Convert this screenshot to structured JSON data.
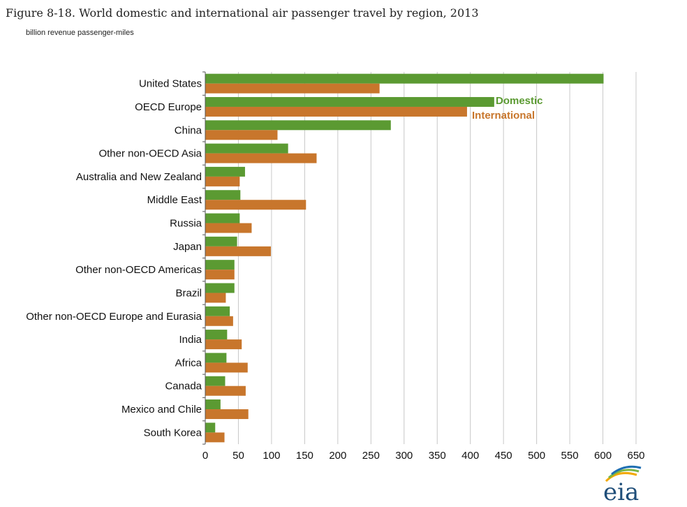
{
  "title": "Figure 8-18. World domestic and international air passenger travel by region, 2013",
  "subtitle": "billion revenue passenger-miles",
  "logo": {
    "text": "eia",
    "colors": [
      "#f2a900",
      "#7ab648",
      "#1f6fb2"
    ]
  },
  "chart_data": {
    "type": "bar",
    "orientation": "horizontal",
    "categories": [
      "United States",
      "OECD Europe",
      "China",
      "Other non-OECD Asia",
      "Australia and New Zealand",
      "Middle East",
      "Russia",
      "Japan",
      "Other non-OECD Americas",
      "Brazil",
      "Other non-OECD Europe and Eurasia",
      "India",
      "Africa",
      "Canada",
      "Mexico and Chile",
      "South Korea"
    ],
    "series": [
      {
        "name": "Domestic",
        "color": "#5b9a32",
        "values": [
          601,
          436,
          280,
          125,
          60,
          53,
          52,
          48,
          44,
          44,
          37,
          33,
          32,
          30,
          23,
          15
        ]
      },
      {
        "name": "International",
        "color": "#c8762c",
        "values": [
          263,
          395,
          109,
          168,
          52,
          152,
          70,
          99,
          44,
          31,
          42,
          55,
          64,
          61,
          65,
          29
        ]
      }
    ],
    "xlim": [
      0,
      650
    ],
    "xticks": [
      0,
      50,
      100,
      150,
      200,
      250,
      300,
      350,
      400,
      450,
      500,
      550,
      600,
      650
    ],
    "xlabel": "",
    "ylabel": "",
    "grid": "vertical",
    "legend": "inline, near OECD Europe bars"
  }
}
